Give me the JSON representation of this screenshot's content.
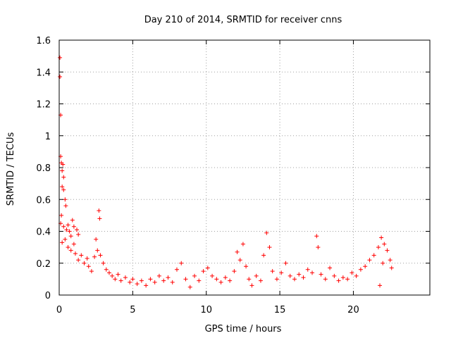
{
  "chart_data": {
    "type": "scatter",
    "title": "Day 210 of 2014, SRMTID for receiver cnns",
    "xlabel": "GPS time / hours",
    "ylabel": "SRMTID / TECUs",
    "xlim": [
      0,
      25.2
    ],
    "ylim": [
      0,
      1.6
    ],
    "xticks": [
      0,
      5,
      10,
      15,
      20
    ],
    "xtick_labels": [
      "0",
      "5",
      "10",
      "15",
      "20"
    ],
    "yticks": [
      0,
      0.2,
      0.4,
      0.6,
      0.8,
      1.0,
      1.2,
      1.4,
      1.6
    ],
    "ytick_labels": [
      "0",
      "0.2",
      "0.4",
      "0.6",
      "0.8",
      "1",
      "1.2",
      "1.4",
      "1.6"
    ],
    "grid": true,
    "marker": "plus",
    "series": [
      {
        "name": "SRMTID",
        "color": "#ff0000",
        "points": [
          [
            0.05,
            1.49
          ],
          [
            0.05,
            1.37
          ],
          [
            0.1,
            1.13
          ],
          [
            0.1,
            0.87
          ],
          [
            0.15,
            0.83
          ],
          [
            0.2,
            0.78
          ],
          [
            0.25,
            0.82
          ],
          [
            0.3,
            0.74
          ],
          [
            0.2,
            0.68
          ],
          [
            0.3,
            0.66
          ],
          [
            0.4,
            0.6
          ],
          [
            0.45,
            0.56
          ],
          [
            0.15,
            0.5
          ],
          [
            0.1,
            0.45
          ],
          [
            0.3,
            0.43
          ],
          [
            0.5,
            0.41
          ],
          [
            0.6,
            0.44
          ],
          [
            0.7,
            0.4
          ],
          [
            0.8,
            0.37
          ],
          [
            0.9,
            0.47
          ],
          [
            1.0,
            0.43
          ],
          [
            1.2,
            0.41
          ],
          [
            1.3,
            0.38
          ],
          [
            0.2,
            0.33
          ],
          [
            0.4,
            0.35
          ],
          [
            0.6,
            0.3
          ],
          [
            0.8,
            0.28
          ],
          [
            1.0,
            0.32
          ],
          [
            1.1,
            0.26
          ],
          [
            1.3,
            0.22
          ],
          [
            1.5,
            0.25
          ],
          [
            1.7,
            0.2
          ],
          [
            1.9,
            0.23
          ],
          [
            2.0,
            0.18
          ],
          [
            2.2,
            0.15
          ],
          [
            2.4,
            0.24
          ],
          [
            2.5,
            0.35
          ],
          [
            2.6,
            0.28
          ],
          [
            2.7,
            0.53
          ],
          [
            2.75,
            0.48
          ],
          [
            2.8,
            0.25
          ],
          [
            3.0,
            0.2
          ],
          [
            3.2,
            0.16
          ],
          [
            3.4,
            0.14
          ],
          [
            3.6,
            0.12
          ],
          [
            3.8,
            0.1
          ],
          [
            4.0,
            0.13
          ],
          [
            4.2,
            0.09
          ],
          [
            4.5,
            0.11
          ],
          [
            4.8,
            0.08
          ],
          [
            5.0,
            0.1
          ],
          [
            5.3,
            0.07
          ],
          [
            5.6,
            0.09
          ],
          [
            5.9,
            0.06
          ],
          [
            6.2,
            0.1
          ],
          [
            6.5,
            0.08
          ],
          [
            6.8,
            0.12
          ],
          [
            7.1,
            0.09
          ],
          [
            7.4,
            0.11
          ],
          [
            7.7,
            0.08
          ],
          [
            8.0,
            0.16
          ],
          [
            8.3,
            0.2
          ],
          [
            8.6,
            0.1
          ],
          [
            8.9,
            0.05
          ],
          [
            9.2,
            0.12
          ],
          [
            9.5,
            0.09
          ],
          [
            9.8,
            0.15
          ],
          [
            10.1,
            0.17
          ],
          [
            10.4,
            0.12
          ],
          [
            10.7,
            0.1
          ],
          [
            11.0,
            0.08
          ],
          [
            11.3,
            0.11
          ],
          [
            11.6,
            0.09
          ],
          [
            11.9,
            0.15
          ],
          [
            12.1,
            0.27
          ],
          [
            12.3,
            0.22
          ],
          [
            12.5,
            0.32
          ],
          [
            12.7,
            0.18
          ],
          [
            12.9,
            0.1
          ],
          [
            13.1,
            0.06
          ],
          [
            13.4,
            0.12
          ],
          [
            13.7,
            0.09
          ],
          [
            13.9,
            0.25
          ],
          [
            14.1,
            0.39
          ],
          [
            14.3,
            0.3
          ],
          [
            14.5,
            0.15
          ],
          [
            14.8,
            0.1
          ],
          [
            15.1,
            0.14
          ],
          [
            15.4,
            0.2
          ],
          [
            15.7,
            0.12
          ],
          [
            16.0,
            0.1
          ],
          [
            16.3,
            0.13
          ],
          [
            16.6,
            0.11
          ],
          [
            16.9,
            0.16
          ],
          [
            17.2,
            0.14
          ],
          [
            17.5,
            0.37
          ],
          [
            17.6,
            0.3
          ],
          [
            17.8,
            0.13
          ],
          [
            18.1,
            0.1
          ],
          [
            18.4,
            0.17
          ],
          [
            18.7,
            0.12
          ],
          [
            19.0,
            0.09
          ],
          [
            19.3,
            0.11
          ],
          [
            19.6,
            0.1
          ],
          [
            19.9,
            0.14
          ],
          [
            20.2,
            0.12
          ],
          [
            20.5,
            0.16
          ],
          [
            20.8,
            0.18
          ],
          [
            21.1,
            0.22
          ],
          [
            21.4,
            0.25
          ],
          [
            21.7,
            0.3
          ],
          [
            21.9,
            0.36
          ],
          [
            22.1,
            0.32
          ],
          [
            22.3,
            0.28
          ],
          [
            22.5,
            0.22
          ],
          [
            22.6,
            0.17
          ],
          [
            21.8,
            0.06
          ],
          [
            22.0,
            0.2
          ]
        ]
      }
    ]
  }
}
